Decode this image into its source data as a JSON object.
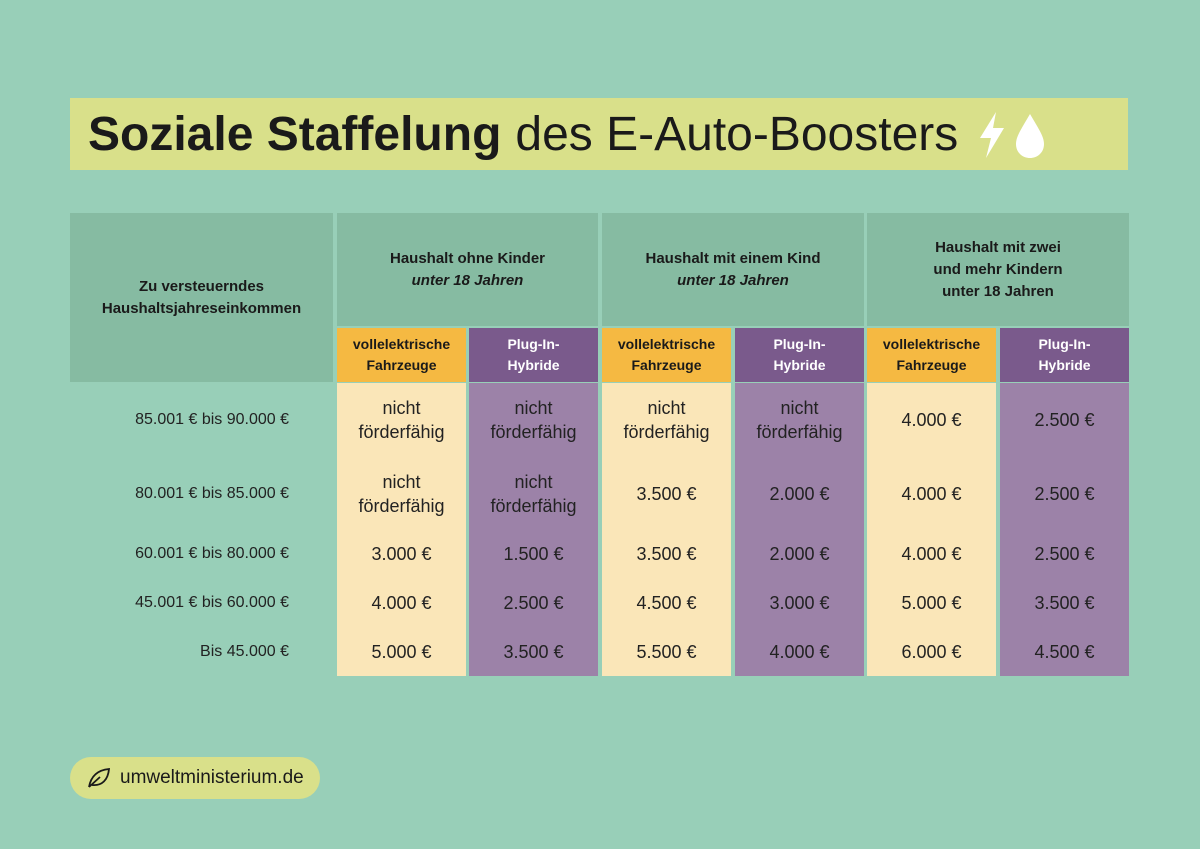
{
  "title": {
    "bold": "Soziale Staffelung",
    "regular": "des E-Auto-Boosters"
  },
  "table": {
    "row_header": [
      "Zu versteuerndes",
      "Haushaltsjahreseinkommen"
    ],
    "groups": [
      [
        "Haushalt ohne Kinder",
        "unter 18 Jahren"
      ],
      [
        "Haushalt mit einem Kind",
        "unter 18 Jahren"
      ],
      [
        "Haushalt mit zwei",
        "und mehr Kindern",
        "unter 18 Jahren"
      ]
    ],
    "subheaders": [
      [
        "vollelektrische",
        "Fahrzeuge"
      ],
      [
        "Plug-In-",
        "Hybride"
      ],
      [
        "vollelektrische",
        "Fahrzeuge"
      ],
      [
        "Plug-In-",
        "Hybride"
      ],
      [
        "vollelektrische",
        "Fahrzeuge"
      ],
      [
        "Plug-In-",
        "Hybride"
      ]
    ],
    "rows": [
      {
        "income": "85.001 € bis 90.000 €",
        "cells": [
          "nicht förderfähig",
          "nicht förderfähig",
          "nicht förderfähig",
          "nicht förderfähig",
          "4.000 €",
          "2.500 €"
        ]
      },
      {
        "income": "80.001 € bis 85.000 €",
        "cells": [
          "nicht förderfähig",
          "nicht förderfähig",
          "3.500 €",
          "2.000 €",
          "4.000 €",
          "2.500 €"
        ]
      },
      {
        "income": "60.001 € bis 80.000 €",
        "cells": [
          "3.000 €",
          "1.500 €",
          "3.500 €",
          "2.000 €",
          "4.000 €",
          "2.500 €"
        ]
      },
      {
        "income": "45.001 € bis 60.000 €",
        "cells": [
          "4.000 €",
          "2.500 €",
          "4.500 €",
          "3.000 €",
          "5.000 €",
          "3.500 €"
        ]
      },
      {
        "income": "Bis  45.000 €",
        "cells": [
          "5.000 €",
          "3.500 €",
          "5.500 €",
          "4.000 €",
          "6.000 €",
          "4.500 €"
        ]
      }
    ]
  },
  "footer": "umweltministerium.de"
}
